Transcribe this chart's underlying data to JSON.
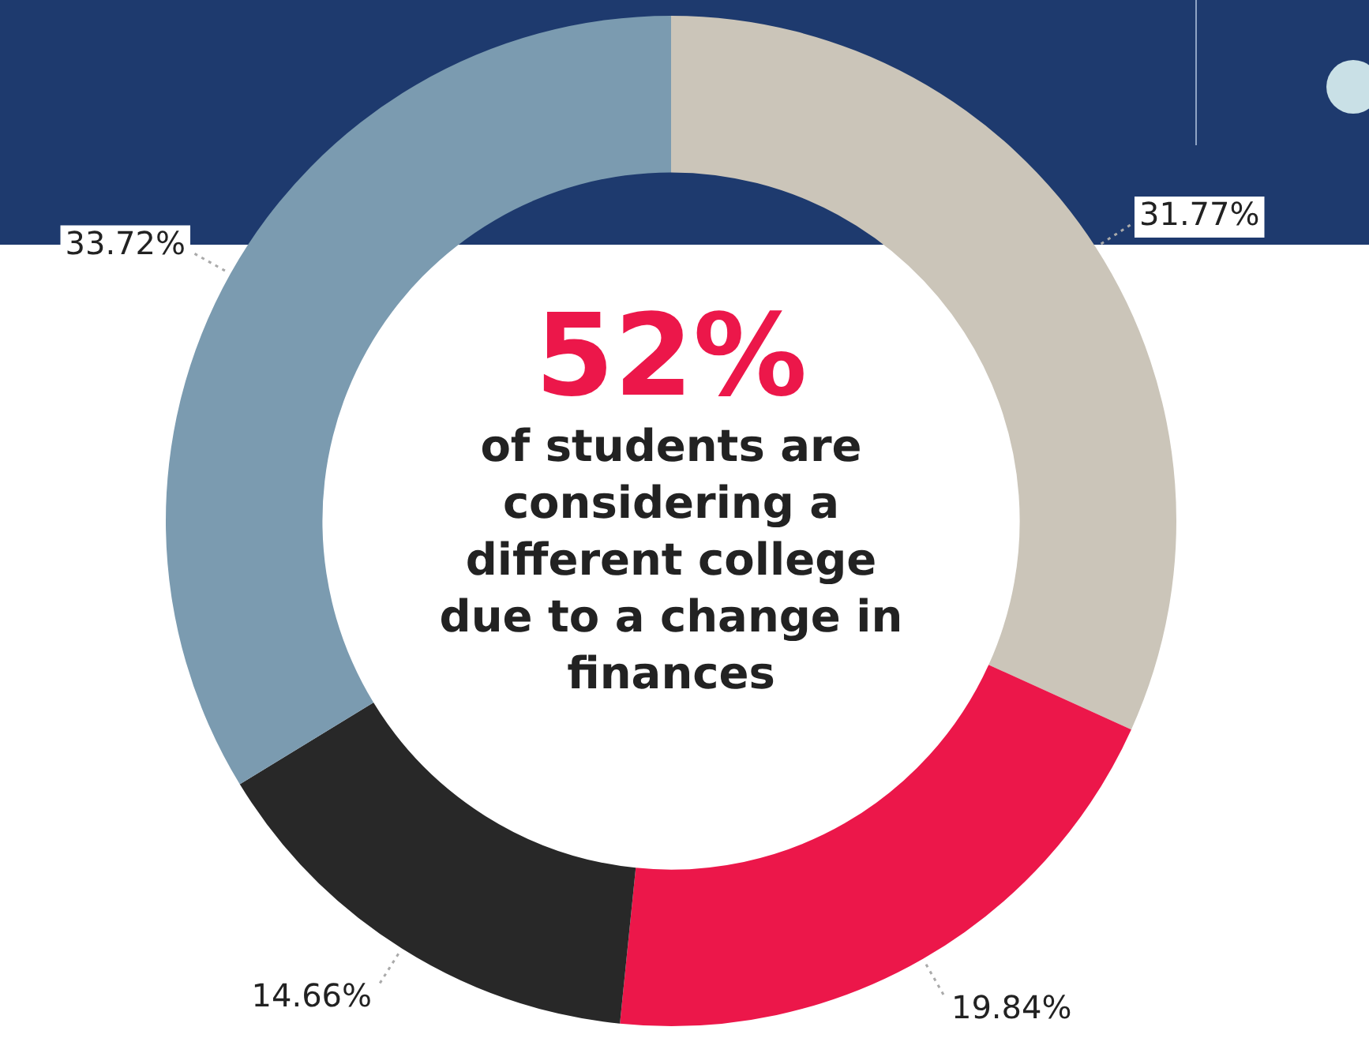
{
  "chart_data": {
    "type": "donut",
    "title": "52%",
    "subtitle": "of students are considering a different college due to a change in finances",
    "categories": [
      null,
      null,
      null,
      null
    ],
    "values": [
      31.77,
      19.84,
      14.66,
      33.72
    ],
    "colors": [
      "#cbc5b9",
      "#ec174a",
      "#282828",
      "#7b9bb0"
    ],
    "value_labels": [
      "31.77%",
      "19.84%",
      "14.66%",
      "33.72%"
    ],
    "legend": false
  }
}
